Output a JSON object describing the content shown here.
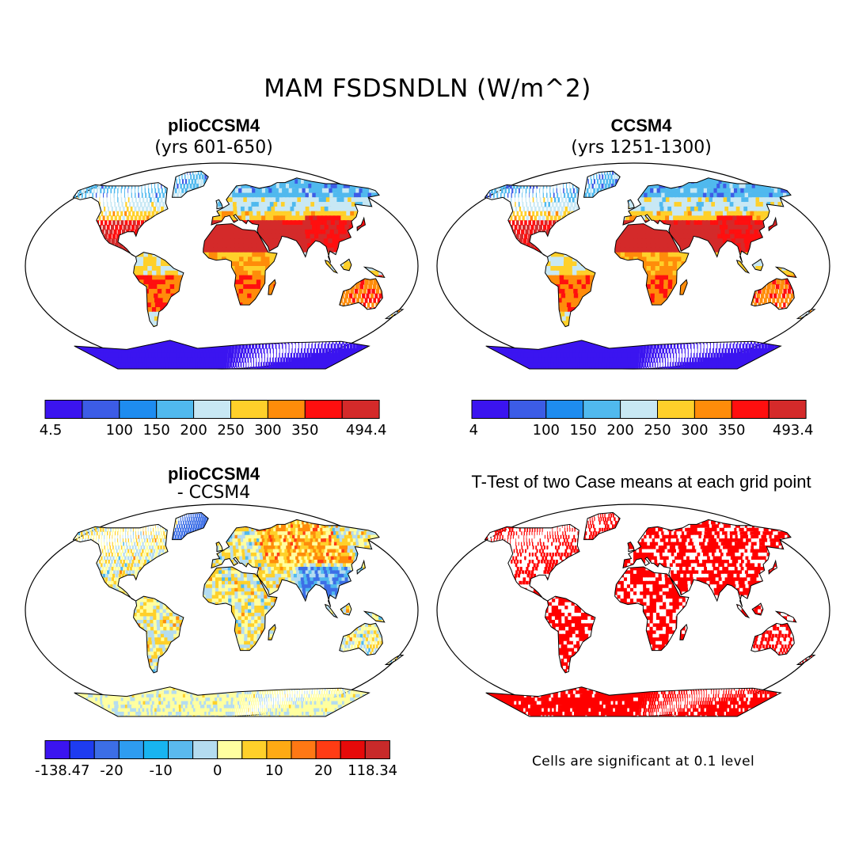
{
  "figure": {
    "title": "MAM FSDSNDLN (W/m^2)"
  },
  "panels": {
    "top_left": {
      "title": "plioCCSM4",
      "subtitle": "(yrs 601-650)"
    },
    "top_right": {
      "title": "CCSM4",
      "subtitle": "(yrs 1251-1300)"
    },
    "bottom_left": {
      "title": "plioCCSM4",
      "subtitle": "- CCSM4"
    },
    "bottom_right": {
      "title": "T-Test of two Case means at each grid point",
      "note": "Cells are significant at 0.1 level"
    }
  },
  "colorbars": {
    "top_left": {
      "colors": [
        "#3b14f0",
        "#3c5ce6",
        "#1e8cf0",
        "#50b9ee",
        "#c8e8f4",
        "#ffd02a",
        "#ff8c0a",
        "#ff0f0f",
        "#d42a2a"
      ],
      "labels": [
        "4.5",
        "100",
        "150",
        "200",
        "250",
        "300",
        "350",
        "494.4"
      ]
    },
    "top_right": {
      "colors": [
        "#3b14f0",
        "#3c5ce6",
        "#1e8cf0",
        "#50b9ee",
        "#c8e8f4",
        "#ffd02a",
        "#ff8c0a",
        "#ff0f0f",
        "#d42a2a"
      ],
      "labels": [
        "4",
        "100",
        "150",
        "200",
        "250",
        "300",
        "350",
        "493.4"
      ]
    },
    "bottom_left": {
      "colors": [
        "#3b14f0",
        "#1e3cf0",
        "#3c6ee6",
        "#2e9cf0",
        "#18b4f0",
        "#5ab9ee",
        "#b4dcf0",
        "#ffffa0",
        "#ffd02a",
        "#ffaa14",
        "#ff7814",
        "#ff3c14",
        "#e60a0a",
        "#c82a2a"
      ],
      "labels": [
        "-138.47",
        "-20",
        "-10",
        "0",
        "10",
        "20",
        "118.34"
      ]
    }
  },
  "map_fills": {
    "land_top": [
      "#3c5ce6",
      "#50b9ee",
      "#c8e8f4",
      "#ffd02a",
      "#ff8c0a",
      "#ff0f0f",
      "#d42a2a"
    ],
    "antarctica_top": "#3b14f0",
    "diff_colors": [
      "#3c6ee6",
      "#50b9ee",
      "#b4dcf0",
      "#ffffa0",
      "#ffd02a",
      "#ff8c0a",
      "#ff3c14"
    ],
    "significant": "#ff0000"
  }
}
